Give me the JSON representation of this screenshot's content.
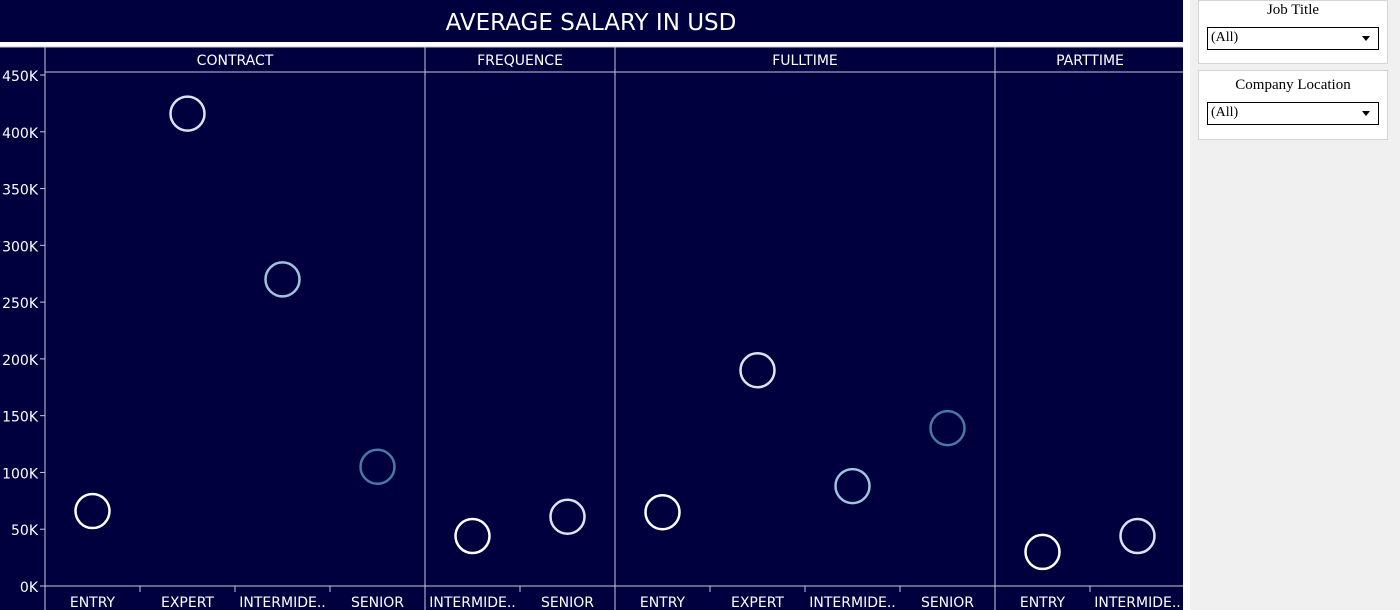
{
  "chart_data": {
    "type": "scatter",
    "title": "AVERAGE SALARY IN USD",
    "xlabel": "",
    "ylabel": "",
    "ylim": [
      0,
      450000
    ],
    "yticks": [
      {
        "value": 0,
        "label": "0K"
      },
      {
        "value": 50000,
        "label": "50K"
      },
      {
        "value": 100000,
        "label": "100K"
      },
      {
        "value": 150000,
        "label": "150K"
      },
      {
        "value": 200000,
        "label": "200K"
      },
      {
        "value": 250000,
        "label": "250K"
      },
      {
        "value": 300000,
        "label": "300K"
      },
      {
        "value": 350000,
        "label": "350K"
      },
      {
        "value": 400000,
        "label": "400K"
      },
      {
        "value": 450000,
        "label": "450K"
      }
    ],
    "grid": false,
    "panels": [
      {
        "name": "CONTRACT",
        "categories": [
          "ENTRY",
          "EXPERT",
          "INTERMIDE..",
          "SENIOR"
        ],
        "values": [
          66000,
          416000,
          270000,
          105000
        ]
      },
      {
        "name": "FREQUENCE",
        "categories": [
          "INTERMIDE..",
          "SENIOR"
        ],
        "values": [
          44000,
          61000
        ]
      },
      {
        "name": "FULLTIME",
        "categories": [
          "ENTRY",
          "EXPERT",
          "INTERMIDE..",
          "SENIOR"
        ],
        "values": [
          65000,
          190000,
          88000,
          139000
        ]
      },
      {
        "name": "PARTTIME",
        "categories": [
          "ENTRY",
          "INTERMIDE.."
        ],
        "values": [
          30000,
          44000
        ]
      }
    ],
    "colors": {
      "background": "#00003f",
      "text": "#ffffff",
      "divider": "#c8c8d8",
      "mark_shades": [
        "#ffffff",
        "#d7e6f2",
        "#9fc3de",
        "#4a78a6"
      ]
    }
  },
  "filters": [
    {
      "label": "Job Title",
      "value": "(All)"
    },
    {
      "label": "Company Location",
      "value": "(All)"
    }
  ]
}
